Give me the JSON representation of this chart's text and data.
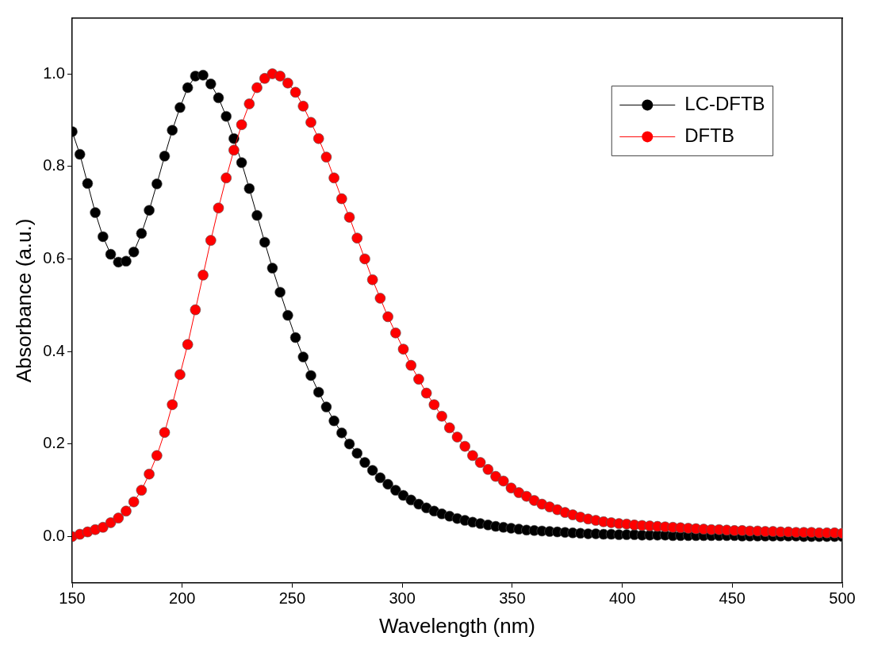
{
  "chart_data": {
    "type": "line",
    "xlabel": "Wavelength (nm)",
    "ylabel": "Absorbance (a.u.)",
    "x": [
      150,
      153.5,
      157,
      160.5,
      164,
      167.5,
      171,
      174.5,
      178,
      181.5,
      185,
      188.5,
      192,
      195.5,
      199,
      202.5,
      206,
      209.5,
      213,
      216.5,
      220,
      223.5,
      227,
      230.5,
      234,
      237.5,
      241,
      244.5,
      248,
      251.5,
      255,
      258.5,
      262,
      265.5,
      269,
      272.5,
      276,
      279.5,
      283,
      286.5,
      290,
      293.5,
      297,
      300.5,
      304,
      307.5,
      311,
      314.5,
      318,
      321.5,
      325,
      328.5,
      332,
      335.5,
      339,
      342.5,
      346,
      349.5,
      353,
      356.5,
      360,
      363.5,
      367,
      370.5,
      374,
      377.5,
      381,
      384.5,
      388,
      391.5,
      395,
      398.5,
      402,
      405.5,
      409,
      412.5,
      416,
      419.5,
      423,
      426.5,
      430,
      433.5,
      437,
      440.5,
      444,
      447.5,
      451,
      454.5,
      458,
      461.5,
      465,
      468.5,
      472,
      475.5,
      479,
      482.5,
      486,
      489.5,
      493,
      496.5,
      500
    ],
    "series": [
      {
        "name": "LC-DFTB",
        "color": "#000000",
        "values": [
          0.875,
          0.826,
          0.763,
          0.7,
          0.648,
          0.61,
          0.593,
          0.595,
          0.615,
          0.655,
          0.705,
          0.762,
          0.822,
          0.878,
          0.927,
          0.97,
          0.995,
          0.997,
          0.978,
          0.948,
          0.908,
          0.86,
          0.808,
          0.752,
          0.694,
          0.636,
          0.58,
          0.528,
          0.478,
          0.43,
          0.388,
          0.348,
          0.312,
          0.28,
          0.25,
          0.224,
          0.2,
          0.18,
          0.16,
          0.143,
          0.127,
          0.113,
          0.1,
          0.089,
          0.079,
          0.07,
          0.062,
          0.055,
          0.049,
          0.044,
          0.039,
          0.035,
          0.031,
          0.028,
          0.025,
          0.022,
          0.02,
          0.018,
          0.016,
          0.014,
          0.013,
          0.012,
          0.011,
          0.01,
          0.009,
          0.008,
          0.007,
          0.006,
          0.006,
          0.005,
          0.005,
          0.004,
          0.004,
          0.004,
          0.003,
          0.003,
          0.003,
          0.003,
          0.002,
          0.002,
          0.002,
          0.002,
          0.002,
          0.002,
          0.002,
          0.002,
          0.002,
          0.001,
          0.001,
          0.001,
          0.001,
          0.001,
          0.001,
          0.001,
          0.001,
          0,
          0,
          0,
          0,
          0,
          0
        ]
      },
      {
        "name": "DFTB",
        "color": "#ff0000",
        "values": [
          0.0,
          0.005,
          0.01,
          0.015,
          0.02,
          0.03,
          0.04,
          0.055,
          0.075,
          0.1,
          0.135,
          0.175,
          0.225,
          0.285,
          0.35,
          0.415,
          0.49,
          0.565,
          0.64,
          0.71,
          0.775,
          0.835,
          0.89,
          0.935,
          0.97,
          0.99,
          1.0,
          0.995,
          0.98,
          0.96,
          0.93,
          0.895,
          0.86,
          0.82,
          0.775,
          0.73,
          0.69,
          0.645,
          0.6,
          0.555,
          0.515,
          0.475,
          0.44,
          0.405,
          0.37,
          0.34,
          0.31,
          0.285,
          0.26,
          0.235,
          0.215,
          0.195,
          0.175,
          0.16,
          0.145,
          0.13,
          0.12,
          0.105,
          0.095,
          0.087,
          0.078,
          0.07,
          0.064,
          0.058,
          0.052,
          0.047,
          0.042,
          0.038,
          0.035,
          0.032,
          0.03,
          0.028,
          0.027,
          0.025,
          0.024,
          0.023,
          0.022,
          0.021,
          0.02,
          0.019,
          0.018,
          0.017,
          0.016,
          0.015,
          0.015,
          0.014,
          0.013,
          0.013,
          0.012,
          0.012,
          0.011,
          0.011,
          0.01,
          0.01,
          0.009,
          0.009,
          0.009,
          0.008,
          0.008,
          0.008,
          0.007
        ]
      }
    ],
    "xlim": [
      150,
      500
    ],
    "xticks": [
      150,
      200,
      250,
      300,
      350,
      400,
      450,
      500
    ],
    "ylim": [
      -0.1,
      1.12
    ],
    "yticks": [
      {
        "value": 0,
        "label": "0.0"
      },
      {
        "value": 0.2,
        "label": "0.2"
      },
      {
        "value": 0.4,
        "label": "0.4"
      },
      {
        "value": 0.6,
        "label": "0.6"
      },
      {
        "value": 0.8,
        "label": "0.8"
      },
      {
        "value": 1,
        "label": "1.0"
      }
    ],
    "marker": "circle",
    "line_style": "solid",
    "grid": false,
    "legend": "top right"
  }
}
